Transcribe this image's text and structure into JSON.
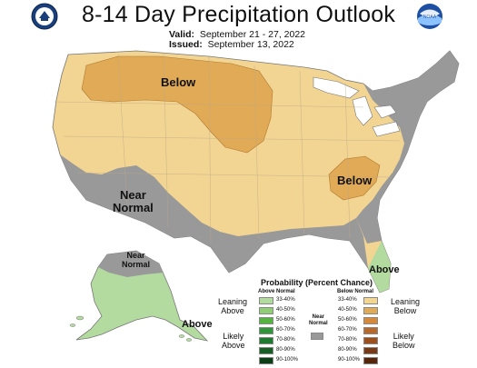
{
  "header": {
    "title": "8-14 Day Precipitation Outlook",
    "valid_label": "Valid:",
    "valid_value": "September 21 - 27, 2022",
    "issued_label": "Issued:",
    "issued_value": "September 13, 2022"
  },
  "logos": {
    "left": "noaa-commerce-seal-icon",
    "right": "noaa-logo-icon",
    "right_text": "NOAA"
  },
  "map_labels": {
    "below_north": "Below",
    "below_southeast": "Below",
    "near_normal_west_1": "Near",
    "near_normal_west_2": "Normal",
    "near_normal_alaska_1": "Near",
    "near_normal_alaska_2": "Normal",
    "above_alaska": "Above",
    "above_florida": "Above"
  },
  "legend": {
    "title": "Probability (Percent Chance)",
    "above_header": "Above Normal",
    "below_header": "Below Normal",
    "normal_label_1": "Near",
    "normal_label_2": "Normal",
    "leaning_above_1": "Leaning",
    "leaning_above_2": "Above",
    "likely_above_1": "Likely",
    "likely_above_2": "Above",
    "leaning_below_1": "Leaning",
    "leaning_below_2": "Below",
    "likely_below_1": "Likely",
    "likely_below_2": "Below",
    "ranges": [
      "33-40%",
      "40-50%",
      "50-60%",
      "60-70%",
      "70-80%",
      "80-90%",
      "90-100%"
    ],
    "above_colors": [
      "#b3dba0",
      "#8fce75",
      "#56b342",
      "#2f963a",
      "#1d7a30",
      "#155e24",
      "#0c3f16"
    ],
    "below_colors": [
      "#f2d592",
      "#e0aa56",
      "#d48a3a",
      "#b8692a",
      "#9a4f1d",
      "#7a3a15",
      "#55260c"
    ],
    "normal_color": "#999999"
  }
}
